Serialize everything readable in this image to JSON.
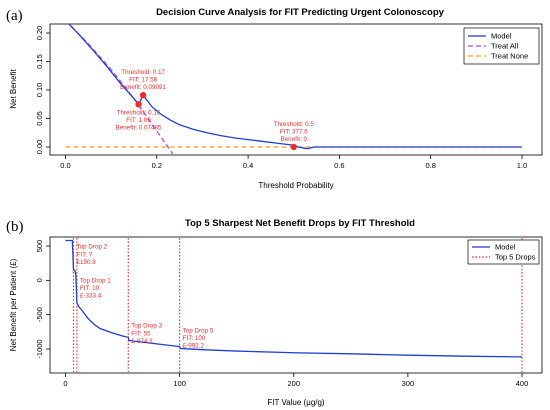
{
  "chart_data": [
    {
      "panel_label": "(a)",
      "type": "line",
      "title": "Decision Curve Analysis for FIT Predicting Urgent Colonoscopy",
      "xlabel": "Threshold Probability",
      "ylabel": "Net Benefit",
      "xlim": [
        0,
        1
      ],
      "ylim": [
        -0.01,
        0.22
      ],
      "xticks": [
        0.0,
        0.2,
        0.4,
        0.6,
        0.8,
        1.0
      ],
      "xtick_labels": [
        "0.0",
        "0.2",
        "0.4",
        "0.6",
        "0.8",
        "1.0"
      ],
      "yticks": [
        0.0,
        0.05,
        0.1,
        0.15,
        0.2
      ],
      "ytick_labels": [
        "0.00",
        "0.05",
        "0.10",
        "0.15",
        "0.20"
      ],
      "grid": false,
      "legend_position": "top-right",
      "series": [
        {
          "name": "Model",
          "color": "#1f3fd6",
          "style": "solid",
          "x": [
            0.0,
            0.03,
            0.06,
            0.09,
            0.12,
            0.15,
            0.16,
            0.17,
            0.19,
            0.21,
            0.23,
            0.25,
            0.28,
            0.31,
            0.34,
            0.37,
            0.4,
            0.43,
            0.46,
            0.48,
            0.5,
            0.51,
            0.53,
            0.545,
            1.0
          ],
          "y": [
            0.222,
            0.197,
            0.17,
            0.142,
            0.112,
            0.085,
            0.0749,
            0.0909,
            0.07,
            0.057,
            0.047,
            0.039,
            0.031,
            0.025,
            0.02,
            0.016,
            0.013,
            0.01,
            0.007,
            0.005,
            0.003,
            0.0,
            -0.003,
            0.0,
            0.0
          ]
        },
        {
          "name": "Treat All",
          "color": "#b44ad8",
          "style": "dashed",
          "x": [
            0.0,
            0.05,
            0.1,
            0.15,
            0.2,
            0.235
          ],
          "y": [
            0.222,
            0.181,
            0.136,
            0.085,
            0.028,
            -0.012
          ]
        },
        {
          "name": "Treat None",
          "color": "#f0a020",
          "style": "dashed",
          "x": [
            0.0,
            1.0
          ],
          "y": [
            0.0,
            0.0
          ]
        }
      ],
      "points": [
        {
          "x": 0.16,
          "y": 0.0749
        },
        {
          "x": 0.17,
          "y": 0.0909
        },
        {
          "x": 0.5,
          "y": 0.0
        }
      ],
      "point_color": "#e8312f",
      "annotations": [
        {
          "x": 0.17,
          "y": 0.0909,
          "lines": [
            "Threshold: 0.17",
            "FIT: 17.58",
            "Benefit: 0.09091"
          ],
          "placement": "above"
        },
        {
          "x": 0.16,
          "y": 0.0749,
          "lines": [
            "Threshold: 0.16",
            "FIT: 1.09",
            "Benefit: 0.07485"
          ],
          "placement": "below"
        },
        {
          "x": 0.5,
          "y": 0.0,
          "lines": [
            "Threshold: 0.5",
            "FIT: 377.6",
            "Benefit: 0"
          ],
          "placement": "above"
        }
      ]
    },
    {
      "panel_label": "(b)",
      "type": "line",
      "title": "Top 5 Sharpest Net Benefit Drops by FIT Threshold",
      "xlabel": "FIT Value (µg/g)",
      "ylabel": "Net Benefit per Patient (£)",
      "xlim": [
        -10,
        410
      ],
      "ylim": [
        -1300,
        640
      ],
      "xticks": [
        0,
        100,
        200,
        300,
        400
      ],
      "xtick_labels": [
        "0",
        "100",
        "200",
        "300",
        "400"
      ],
      "yticks": [
        500,
        0,
        -500,
        -1000
      ],
      "ytick_labels": [
        "500",
        "0",
        "-500",
        "-1000"
      ],
      "grid": false,
      "legend_position": "top-right",
      "series": [
        {
          "name": "Model",
          "color": "#1f3fd6",
          "style": "solid",
          "x": [
            0,
            6,
            7,
            8,
            9,
            10,
            12,
            15,
            20,
            25,
            30,
            40,
            50,
            55,
            55.5,
            60,
            70,
            80,
            90,
            100,
            100.5,
            120,
            150,
            200,
            250,
            300,
            350,
            400
          ],
          "y": [
            580,
            580,
            150.8,
            150.8,
            100,
            -333.4,
            -390,
            -450,
            -560,
            -640,
            -700,
            -760,
            -810,
            -830,
            -874.3,
            -885,
            -905,
            -925,
            -945,
            -965,
            -992.2,
            -1010,
            -1030,
            -1055,
            -1070,
            -1090,
            -1105,
            -1115
          ]
        }
      ],
      "drop_lines": {
        "name": "Top 5 Drops",
        "color": "#e8312f",
        "style": "dotted",
        "x": [
          7,
          10,
          55,
          100,
          400
        ]
      },
      "annotations": [
        {
          "x": 7,
          "y": 460,
          "lines": [
            "Top Drop 2",
            "FIT: 7",
            "£150.8"
          ]
        },
        {
          "x": 10,
          "y": -30,
          "lines": [
            "Top Drop 1",
            "FIT: 10",
            "£-333.4"
          ]
        },
        {
          "x": 55,
          "y": -690,
          "lines": [
            "Top Drop 3",
            "FIT: 55",
            "£-874.3"
          ]
        },
        {
          "x": 100,
          "y": -760,
          "lines": [
            "Top Drop 5",
            "FIT: 100",
            "£-992.2"
          ]
        }
      ]
    }
  ]
}
